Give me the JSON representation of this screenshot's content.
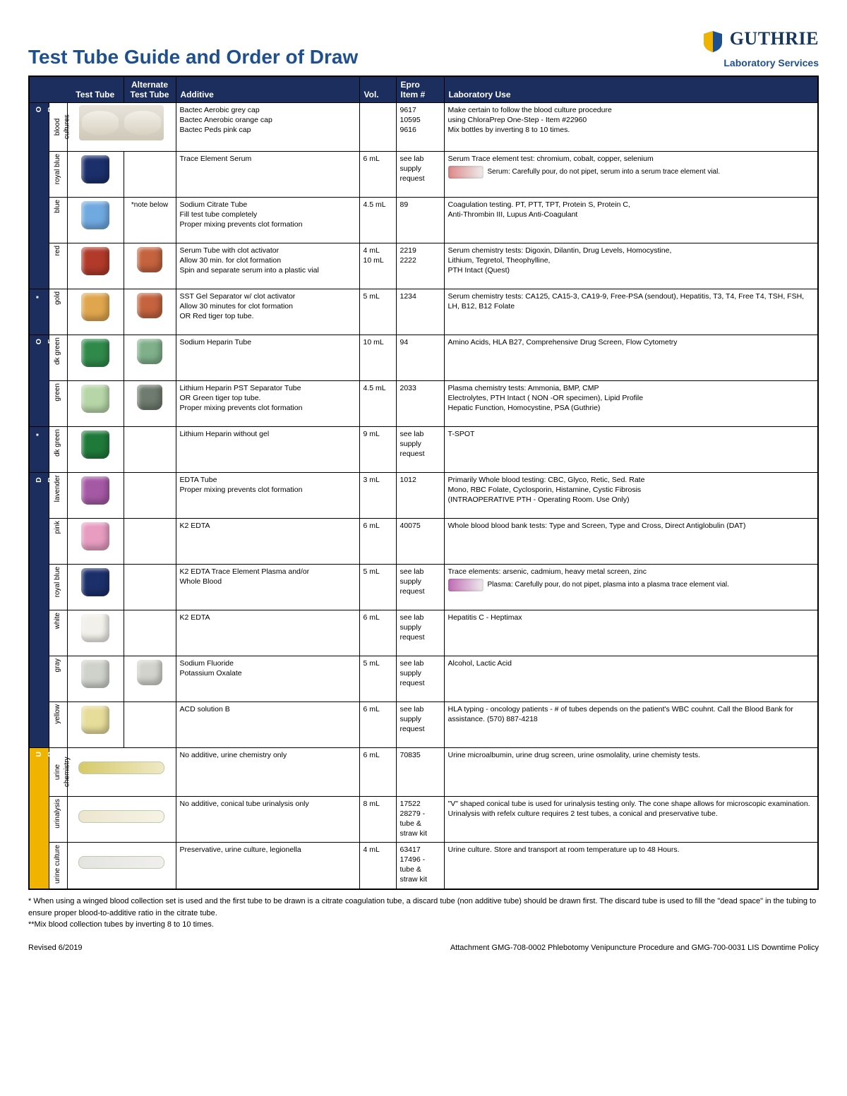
{
  "page": {
    "title": "Test Tube Guide and Order of Draw",
    "brand": "GUTHRIE",
    "brand_sub": "Laboratory Services",
    "brand_colors": {
      "shield_left": "#f0b400",
      "shield_right": "#1e4f8f",
      "text": "#17375e"
    },
    "revised": "Revised 6/2019",
    "attachment": "Attachment GMG-708-0002 Phlebotomy Venipuncture Procedure and GMG-700-0031 LIS Downtime Policy",
    "footnote1": "* When using a winged blood collection set is used and the first tube to be drawn is a citrate coagulation tube, a discard tube (non additive tube) should be drawn first. The discard tube is used to fill the \"dead space\" in the tubing to ensure proper blood-to-additive ratio in the citrate tube.",
    "footnote2": "**Mix blood collection tubes by inverting 8 to 10 times."
  },
  "headers": {
    "test_tube": "Test Tube",
    "alt_tube": "Alternate Test Tube",
    "additive": "Additive",
    "vol": "Vol.",
    "item": "Epro Item #",
    "lab": "Laboratory Use"
  },
  "side_labels": {
    "order": "O R D E R",
    "star": "*",
    "of": "O F",
    "draw": "D R A W",
    "urine": "U R I N E"
  },
  "rows": [
    {
      "grp": "order",
      "color": "blood cultures",
      "tube_color": "#d6cdbc",
      "alt_color": null,
      "tube_shape": "bottles",
      "additive": "Bactec Aerobic grey cap\nBactec Anerobic orange cap\nBactec Peds pink cap",
      "vol": "",
      "item": "9617\n10595\n9616",
      "lab": "Make certain to follow the blood culture procedure\nusing ChloraPrep One-Step  -  Item #22960\nMix bottles by inverting 8 to 10 times."
    },
    {
      "grp": "order",
      "color": "royal blue",
      "tube_color": "#1b2f6b",
      "alt_color": null,
      "additive": "Trace Element Serum",
      "vol": "6 mL",
      "item": "see lab supply request",
      "lab": "Serum Trace element test: chromium, cobalt, copper, selenium",
      "inline_vial": "#d88",
      "inline_text": "Serum: Carefully pour, do not pipet, serum into a serum trace element vial."
    },
    {
      "grp": "order",
      "color": "blue",
      "tube_color": "#6fa9e0",
      "alt_color": null,
      "alt_text": "*note below",
      "additive": "Sodium Citrate Tube\nFill test tube completely\nProper mixing prevents clot formation",
      "vol": "4.5 mL",
      "item": "89",
      "lab": "Coagulation testing. PT, PTT, TPT, Protein S, Protein C,\nAnti-Thrombin III, Lupus Anti-Coagulant"
    },
    {
      "grp": "order",
      "color": "red",
      "tube_color": "#b13a2a",
      "alt_color": "#c4633e",
      "additive": "Serum Tube with clot activator\nAllow 30 min. for clot formation\nSpin and separate serum into a plastic vial",
      "vol": "4 mL\n10 mL",
      "item": "2219\n2222",
      "lab": "Serum chemistry tests: Digoxin, Dilantin, Drug Levels, Homocystine,\nLithium, Tegretol, Theophylline,\nPTH Intact (Quest)"
    },
    {
      "grp": "star",
      "color": "gold",
      "tube_color": "#e0a64d",
      "alt_color": "#c4633e",
      "additive": "SST Gel Separator w/ clot activator\nAllow 30 minutes for clot formation\nOR Red tiger top tube.",
      "vol": "5 mL",
      "item": "1234",
      "lab": "Serum chemistry tests: CA125, CA15-3, CA19-9, Free-PSA (sendout), Hepatitis,  T3, T4, Free T4, TSH, FSH, LH, B12, B12 Folate"
    },
    {
      "grp": "of",
      "color": "dk green",
      "tube_color": "#2f8a4a",
      "alt_color": "#7fb08a",
      "additive": "Sodium Heparin Tube",
      "vol": "10 mL",
      "item": "94",
      "lab": "Amino Acids, HLA B27, Comprehensive Drug Screen, Flow Cytometry"
    },
    {
      "grp": "of",
      "color": "green",
      "tube_color": "#b7d6a8",
      "alt_color": "#6f7b6f",
      "additive": "Lithium Heparin PST Separator Tube\nOR Green tiger top tube.\nProper mixing prevents clot formation",
      "vol": "4.5 mL",
      "item": "2033",
      "lab": "Plasma chemistry tests: Ammonia, BMP, CMP\nElectrolytes, PTH Intact ( NON -OR specimen), Lipid Profile\nHepatic Function, Homocystine, PSA (Guthrie)"
    },
    {
      "grp": "star2",
      "color": "dk green",
      "tube_color": "#1f7a3a",
      "alt_color": null,
      "additive": "Lithium Heparin without gel",
      "vol": "9 mL",
      "item": "see lab supply request",
      "lab": "T-SPOT"
    },
    {
      "grp": "draw",
      "color": "lavender",
      "tube_color": "#a559a5",
      "alt_color": null,
      "additive": "EDTA Tube\nProper mixing prevents clot formation",
      "vol": "3 mL",
      "item": "1012",
      "lab": "Primarily Whole blood testing: CBC, Glyco, Retic, Sed. Rate\nMono, RBC Folate, Cyclosporin, Histamine, Cystic Fibrosis\n(INTRAOPERATIVE PTH - Operating Room. Use Only)"
    },
    {
      "grp": "draw",
      "color": "pink",
      "tube_color": "#e79cc0",
      "alt_color": null,
      "additive": "K2 EDTA",
      "vol": "6 mL",
      "item": "40075",
      "lab": "Whole blood blood bank tests: Type and Screen, Type and Cross, Direct Antiglobulin (DAT)"
    },
    {
      "grp": "draw",
      "color": "royal blue",
      "tube_color": "#1b2f6b",
      "alt_color": null,
      "additive": "K2 EDTA Trace Element Plasma and/or\nWhole Blood",
      "vol": "5 mL",
      "item": "see lab supply request",
      "lab": "Trace elements: arsenic, cadmium, heavy metal screen, zinc",
      "inline_vial": "#c06bb5",
      "inline_text": "Plasma: Carefully pour, do not pipet, plasma into a plasma trace element vial."
    },
    {
      "grp": "draw",
      "color": "white",
      "tube_color": "#f2f0ea",
      "alt_color": null,
      "additive": "K2 EDTA",
      "vol": "6 mL",
      "item": "see lab supply request",
      "lab": "Hepatitis C - Heptimax"
    },
    {
      "grp": "draw",
      "color": "gray",
      "tube_color": "#cfd1cb",
      "alt_color": "#d2d3cd",
      "additive": "Sodium Fluoride\nPotassium Oxalate",
      "vol": "5 mL",
      "item": "see lab supply request",
      "lab": "Alcohol, Lactic Acid"
    },
    {
      "grp": "draw",
      "color": "yellow",
      "tube_color": "#e7dd9a",
      "alt_color": null,
      "additive": "ACD solution B",
      "vol": "6 mL",
      "item": "see lab supply request",
      "lab": "HLA typing - oncology patients - # of tubes depends on the patient's WBC couhnt. Call the Blood Bank for assistance.    (570) 887-4218"
    },
    {
      "grp": "urine",
      "color": "urine chemistry",
      "tube_shape": "urine-yellow",
      "additive": "No additive, urine chemistry only",
      "vol": "6 mL",
      "item": "70835",
      "lab": "Urine microalbumin, urine drug screen, urine osmolality, urine chemisty tests."
    },
    {
      "grp": "urine",
      "color": "urinalysis",
      "tube_shape": "urine-cream",
      "additive": "No additive, conical tube urinalysis only",
      "vol": "8 mL",
      "item": "17522\n28279 - tube & straw kit",
      "lab": "\"V\" shaped conical tube is used for urinalysis testing only.    The cone shape allows for microscopic examination.  Urinalysis with refelx culture requires 2 test tubes, a conical and preservative tube."
    },
    {
      "grp": "urine",
      "color": "urine culture",
      "tube_shape": "urine-gray",
      "additive": "Preservative, urine culture, legionella",
      "vol": "4 mL",
      "item": "63417\n17496 - tube & straw kit",
      "lab": "Urine culture. Store and transport at room temperature up to 48 Hours."
    }
  ]
}
